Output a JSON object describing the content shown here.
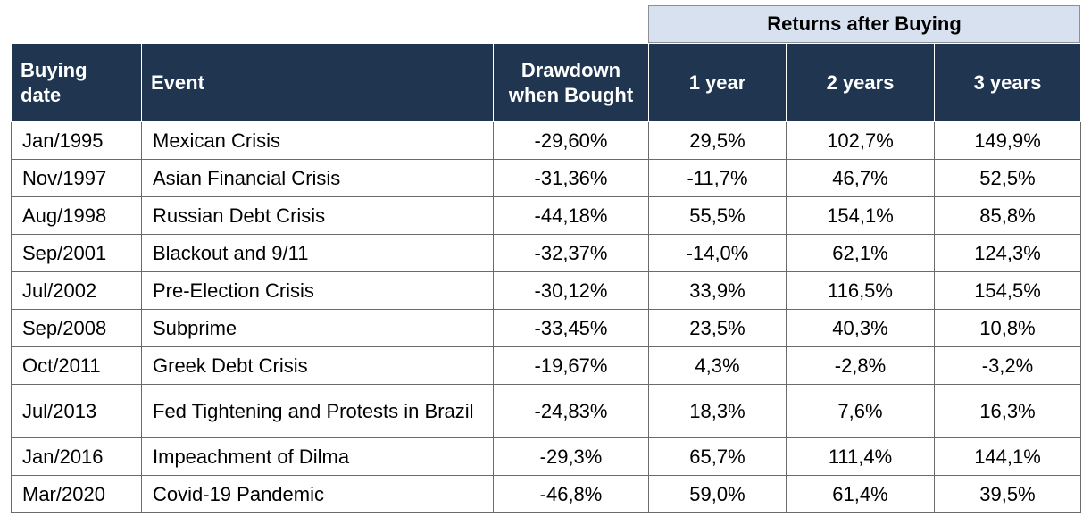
{
  "super_header": "Returns after Buying",
  "headers": {
    "buying_date": "Buying date",
    "event": "Event",
    "drawdown": "Drawdown when Bought",
    "y1": "1 year",
    "y2": "2 years",
    "y3": "3 years"
  },
  "rows": [
    {
      "date": "Jan/1995",
      "event": "Mexican Crisis",
      "drawdown": "-29,60%",
      "y1": "29,5%",
      "y2": "102,7%",
      "y3": "149,9%"
    },
    {
      "date": "Nov/1997",
      "event": "Asian Financial Crisis",
      "drawdown": "-31,36%",
      "y1": "-11,7%",
      "y2": "46,7%",
      "y3": "52,5%"
    },
    {
      "date": "Aug/1998",
      "event": "Russian Debt Crisis",
      "drawdown": "-44,18%",
      "y1": "55,5%",
      "y2": "154,1%",
      "y3": "85,8%"
    },
    {
      "date": "Sep/2001",
      "event": "Blackout and 9/11",
      "drawdown": "-32,37%",
      "y1": "-14,0%",
      "y2": "62,1%",
      "y3": "124,3%"
    },
    {
      "date": "Jul/2002",
      "event": "Pre-Election Crisis",
      "drawdown": "-30,12%",
      "y1": "33,9%",
      "y2": "116,5%",
      "y3": "154,5%"
    },
    {
      "date": "Sep/2008",
      "event": "Subprime",
      "drawdown": "-33,45%",
      "y1": "23,5%",
      "y2": "40,3%",
      "y3": "10,8%"
    },
    {
      "date": "Oct/2011",
      "event": "Greek Debt Crisis",
      "drawdown": "-19,67%",
      "y1": "4,3%",
      "y2": "-2,8%",
      "y3": "-3,2%"
    },
    {
      "date": "Jul/2013",
      "event": "Fed Tightening and Protests in Brazil",
      "drawdown": "-24,83%",
      "y1": "18,3%",
      "y2": "7,6%",
      "y3": "16,3%"
    },
    {
      "date": "Jan/2016",
      "event": "Impeachment of Dilma",
      "drawdown": "-29,3%",
      "y1": "65,7%",
      "y2": "111,4%",
      "y3": "144,1%"
    },
    {
      "date": "Mar/2020",
      "event": "Covid-19 Pandemic",
      "drawdown": "-46,8%",
      "y1": "59,0%",
      "y2": "61,4%",
      "y3": "39,5%"
    }
  ],
  "colors": {
    "header_bg": "#1f3550",
    "super_header_bg": "#d8e1ef"
  }
}
